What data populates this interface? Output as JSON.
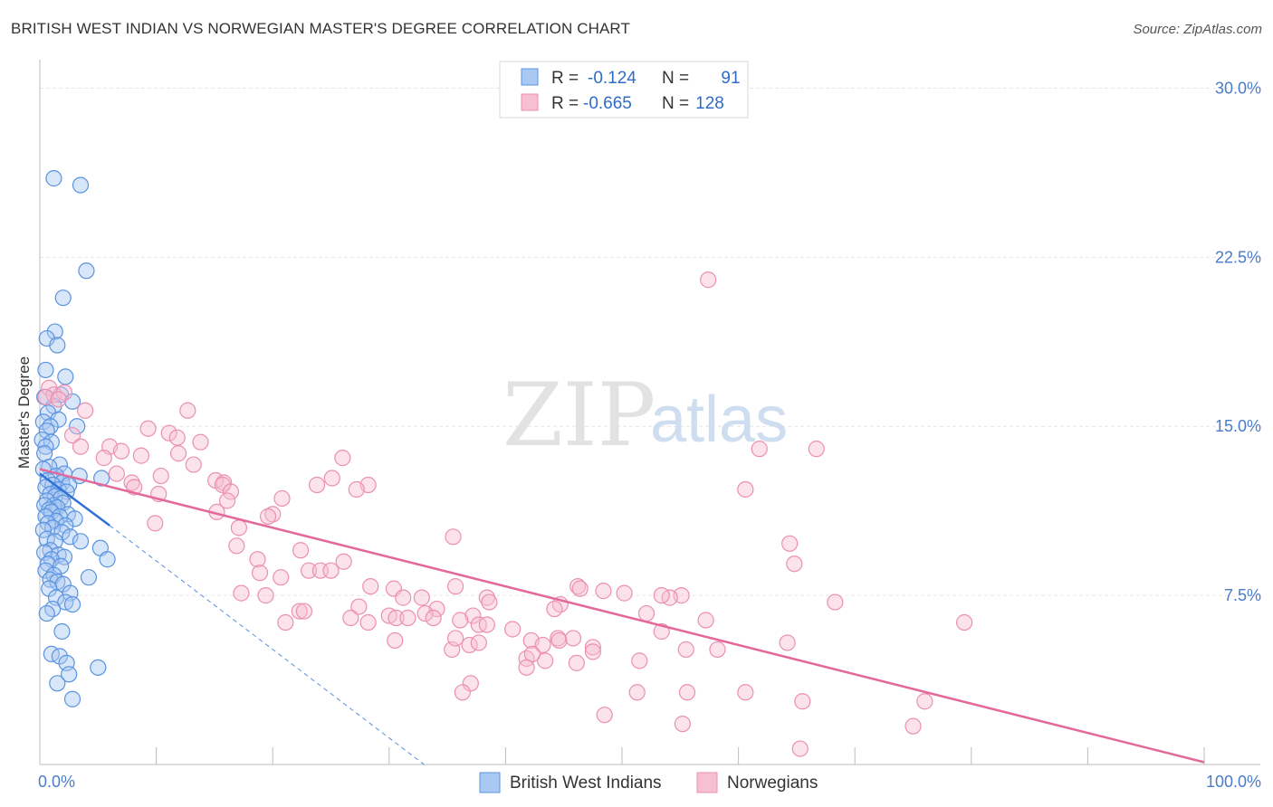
{
  "header": {
    "title": "BRITISH WEST INDIAN VS NORWEGIAN MASTER'S DEGREE CORRELATION CHART",
    "source": "Source: ZipAtlas.com"
  },
  "watermark": {
    "zip": "ZIP",
    "atlas": "atlas"
  },
  "stats": [
    {
      "r_label": "R =",
      "r_value": "-0.124",
      "n_label": "N =",
      "n_value": "91"
    },
    {
      "r_label": "R =",
      "r_value": "-0.665",
      "n_label": "N =",
      "n_value": "128"
    }
  ],
  "colors": {
    "blue_fill": "#a9c8f2",
    "blue_edge": "#5a93e0",
    "blue_line": "#2f72d6",
    "pink_fill": "#f7bfd2",
    "pink_edge": "#ec8fb0",
    "pink_line": "#e3699a",
    "grid": "#e6e6e6",
    "tick_text": "#4a7cc9"
  },
  "chart_data": {
    "type": "scatter",
    "title": "BRITISH WEST INDIAN VS NORWEGIAN MASTER'S DEGREE CORRELATION CHART",
    "xlabel": "",
    "ylabel": "Master's Degree",
    "xlim": [
      0,
      100
    ],
    "ylim": [
      0,
      30.7
    ],
    "y_ticks": [
      7.5,
      15.0,
      22.5,
      30.0
    ],
    "y_tick_labels": [
      "7.5%",
      "15.0%",
      "22.5%",
      "30.0%"
    ],
    "x_tick_labels": [
      "0.0%",
      "100.0%"
    ],
    "grid": true,
    "legend_position": "bottom-center",
    "series": [
      {
        "name": "British West Indians",
        "r": -0.124,
        "n": 91,
        "trend": {
          "x": [
            0,
            6
          ],
          "y": [
            12.9,
            10.6
          ]
        },
        "trend_extension": {
          "x": [
            6,
            33
          ],
          "y": [
            10.6,
            0.0
          ]
        },
        "points": [
          [
            1.2,
            26.0
          ],
          [
            3.5,
            25.7
          ],
          [
            4.0,
            21.9
          ],
          [
            2.0,
            20.7
          ],
          [
            1.3,
            19.2
          ],
          [
            0.6,
            18.9
          ],
          [
            1.5,
            18.6
          ],
          [
            0.5,
            17.5
          ],
          [
            2.2,
            17.2
          ],
          [
            1.8,
            16.4
          ],
          [
            0.4,
            16.3
          ],
          [
            2.8,
            16.1
          ],
          [
            1.2,
            15.9
          ],
          [
            0.7,
            15.6
          ],
          [
            0.3,
            15.2
          ],
          [
            1.6,
            15.3
          ],
          [
            0.9,
            15.0
          ],
          [
            0.6,
            14.8
          ],
          [
            3.2,
            15.0
          ],
          [
            0.2,
            14.4
          ],
          [
            1.0,
            14.3
          ],
          [
            0.5,
            14.1
          ],
          [
            0.4,
            13.8
          ],
          [
            1.7,
            13.3
          ],
          [
            0.8,
            13.2
          ],
          [
            0.3,
            13.1
          ],
          [
            2.1,
            12.9
          ],
          [
            1.4,
            12.8
          ],
          [
            3.4,
            12.8
          ],
          [
            5.3,
            12.7
          ],
          [
            0.7,
            12.6
          ],
          [
            1.9,
            12.5
          ],
          [
            2.5,
            12.4
          ],
          [
            1.1,
            12.4
          ],
          [
            0.5,
            12.3
          ],
          [
            1.6,
            12.2
          ],
          [
            2.3,
            12.1
          ],
          [
            0.9,
            12.0
          ],
          [
            1.3,
            11.9
          ],
          [
            1.8,
            11.8
          ],
          [
            0.6,
            11.7
          ],
          [
            2.0,
            11.6
          ],
          [
            1.2,
            11.5
          ],
          [
            0.4,
            11.5
          ],
          [
            1.5,
            11.4
          ],
          [
            0.8,
            11.3
          ],
          [
            1.0,
            11.2
          ],
          [
            2.4,
            11.1
          ],
          [
            1.7,
            11.0
          ],
          [
            0.5,
            11.0
          ],
          [
            3.0,
            10.9
          ],
          [
            1.4,
            10.8
          ],
          [
            0.7,
            10.7
          ],
          [
            2.2,
            10.6
          ],
          [
            1.1,
            10.5
          ],
          [
            0.3,
            10.4
          ],
          [
            1.9,
            10.3
          ],
          [
            2.6,
            10.1
          ],
          [
            0.6,
            10.0
          ],
          [
            1.3,
            9.9
          ],
          [
            3.5,
            9.9
          ],
          [
            5.2,
            9.6
          ],
          [
            0.9,
            9.5
          ],
          [
            0.4,
            9.4
          ],
          [
            1.6,
            9.3
          ],
          [
            2.1,
            9.2
          ],
          [
            1.0,
            9.1
          ],
          [
            5.8,
            9.1
          ],
          [
            0.7,
            8.9
          ],
          [
            1.8,
            8.8
          ],
          [
            0.5,
            8.6
          ],
          [
            1.2,
            8.4
          ],
          [
            4.2,
            8.3
          ],
          [
            0.9,
            8.2
          ],
          [
            1.5,
            8.1
          ],
          [
            2.0,
            8.0
          ],
          [
            0.8,
            7.8
          ],
          [
            2.6,
            7.6
          ],
          [
            1.4,
            7.4
          ],
          [
            2.2,
            7.2
          ],
          [
            2.8,
            7.1
          ],
          [
            1.1,
            6.9
          ],
          [
            0.6,
            6.7
          ],
          [
            1.9,
            5.9
          ],
          [
            1.0,
            4.9
          ],
          [
            1.7,
            4.8
          ],
          [
            2.3,
            4.5
          ],
          [
            5.0,
            4.3
          ],
          [
            2.5,
            4.0
          ],
          [
            1.5,
            3.6
          ],
          [
            2.8,
            2.9
          ]
        ]
      },
      {
        "name": "Norwegians",
        "r": -0.665,
        "n": 128,
        "trend": {
          "x": [
            0,
            100
          ],
          "y": [
            13.1,
            0.1
          ]
        },
        "points": [
          [
            0.8,
            16.7
          ],
          [
            1.2,
            16.4
          ],
          [
            2.1,
            16.5
          ],
          [
            0.5,
            16.3
          ],
          [
            1.6,
            16.2
          ],
          [
            3.9,
            15.7
          ],
          [
            12.7,
            15.7
          ],
          [
            9.3,
            14.9
          ],
          [
            11.1,
            14.7
          ],
          [
            2.8,
            14.6
          ],
          [
            11.8,
            14.5
          ],
          [
            13.8,
            14.3
          ],
          [
            3.5,
            14.1
          ],
          [
            6.0,
            14.1
          ],
          [
            7.0,
            13.9
          ],
          [
            11.9,
            13.8
          ],
          [
            8.7,
            13.7
          ],
          [
            5.5,
            13.6
          ],
          [
            26.0,
            13.6
          ],
          [
            13.2,
            13.3
          ],
          [
            6.6,
            12.9
          ],
          [
            10.4,
            12.8
          ],
          [
            25.1,
            12.7
          ],
          [
            15.1,
            12.6
          ],
          [
            7.9,
            12.5
          ],
          [
            15.8,
            12.5
          ],
          [
            23.8,
            12.4
          ],
          [
            28.2,
            12.4
          ],
          [
            15.7,
            12.4
          ],
          [
            8.1,
            12.3
          ],
          [
            27.2,
            12.2
          ],
          [
            16.4,
            12.1
          ],
          [
            10.2,
            12.0
          ],
          [
            20.8,
            11.8
          ],
          [
            16.1,
            11.7
          ],
          [
            15.2,
            11.2
          ],
          [
            20.0,
            11.1
          ],
          [
            19.6,
            11.0
          ],
          [
            9.9,
            10.7
          ],
          [
            17.1,
            10.5
          ],
          [
            35.5,
            10.1
          ],
          [
            16.9,
            9.7
          ],
          [
            22.4,
            9.5
          ],
          [
            18.7,
            9.1
          ],
          [
            26.1,
            9.0
          ],
          [
            23.1,
            8.6
          ],
          [
            24.1,
            8.6
          ],
          [
            25.0,
            8.6
          ],
          [
            18.9,
            8.5
          ],
          [
            20.7,
            8.3
          ],
          [
            28.4,
            7.9
          ],
          [
            35.7,
            7.9
          ],
          [
            46.2,
            7.9
          ],
          [
            46.4,
            7.8
          ],
          [
            30.4,
            7.8
          ],
          [
            48.4,
            7.7
          ],
          [
            50.2,
            7.6
          ],
          [
            17.3,
            7.6
          ],
          [
            19.4,
            7.5
          ],
          [
            55.1,
            7.5
          ],
          [
            31.2,
            7.4
          ],
          [
            38.4,
            7.4
          ],
          [
            32.8,
            7.4
          ],
          [
            54.1,
            7.4
          ],
          [
            38.6,
            7.2
          ],
          [
            68.3,
            7.2
          ],
          [
            27.4,
            7.0
          ],
          [
            34.1,
            6.9
          ],
          [
            22.3,
            6.8
          ],
          [
            22.7,
            6.8
          ],
          [
            33.1,
            6.7
          ],
          [
            37.2,
            6.6
          ],
          [
            30.0,
            6.6
          ],
          [
            30.6,
            6.5
          ],
          [
            31.6,
            6.5
          ],
          [
            26.7,
            6.5
          ],
          [
            33.8,
            6.5
          ],
          [
            36.1,
            6.4
          ],
          [
            57.2,
            6.4
          ],
          [
            21.1,
            6.3
          ],
          [
            28.2,
            6.3
          ],
          [
            37.7,
            6.2
          ],
          [
            38.4,
            6.2
          ],
          [
            79.4,
            6.3
          ],
          [
            40.6,
            6.0
          ],
          [
            53.4,
            5.9
          ],
          [
            44.5,
            5.6
          ],
          [
            42.2,
            5.5
          ],
          [
            44.6,
            5.5
          ],
          [
            45.8,
            5.6
          ],
          [
            43.2,
            5.3
          ],
          [
            36.9,
            5.3
          ],
          [
            35.4,
            5.1
          ],
          [
            30.5,
            5.5
          ],
          [
            35.7,
            5.6
          ],
          [
            37.7,
            5.4
          ],
          [
            47.5,
            5.2
          ],
          [
            47.5,
            5.0
          ],
          [
            41.8,
            4.7
          ],
          [
            43.4,
            4.6
          ],
          [
            46.1,
            4.5
          ],
          [
            51.5,
            4.6
          ],
          [
            42.3,
            4.9
          ],
          [
            55.5,
            5.1
          ],
          [
            58.2,
            5.1
          ],
          [
            41.8,
            4.3
          ],
          [
            37.0,
            3.6
          ],
          [
            36.3,
            3.2
          ],
          [
            51.3,
            3.2
          ],
          [
            64.2,
            5.4
          ],
          [
            55.6,
            3.2
          ],
          [
            60.6,
            3.2
          ],
          [
            65.5,
            2.8
          ],
          [
            76.0,
            2.8
          ],
          [
            48.5,
            2.2
          ],
          [
            55.2,
            1.8
          ],
          [
            75.0,
            1.7
          ],
          [
            65.3,
            0.7
          ],
          [
            57.4,
            21.5
          ],
          [
            60.6,
            12.2
          ],
          [
            61.8,
            14.0
          ],
          [
            66.7,
            14.0
          ],
          [
            64.4,
            9.8
          ],
          [
            64.8,
            8.9
          ],
          [
            53.4,
            7.5
          ],
          [
            52.1,
            6.7
          ],
          [
            44.7,
            7.1
          ],
          [
            44.2,
            6.9
          ]
        ]
      }
    ]
  }
}
